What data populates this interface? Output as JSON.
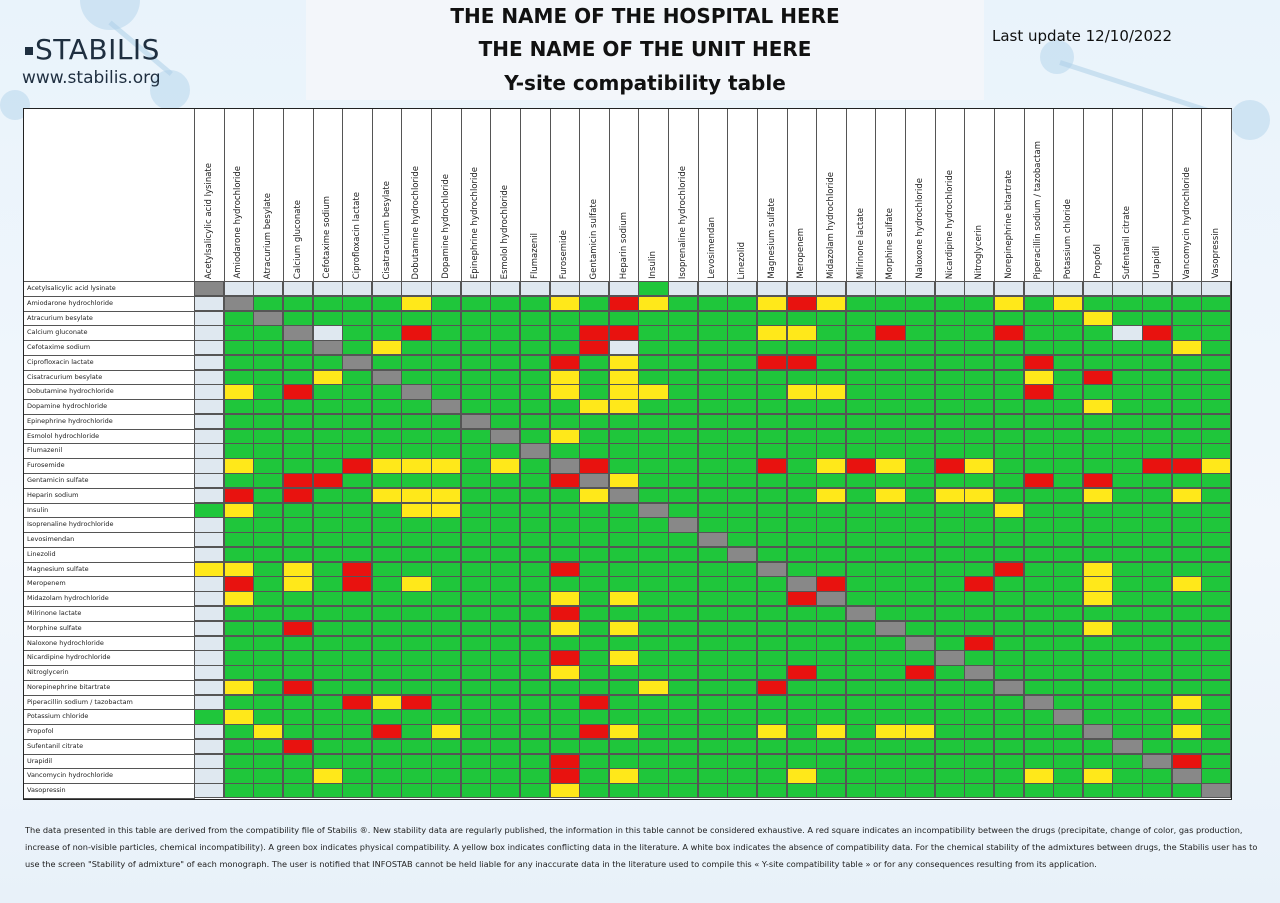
{
  "header": {
    "hospital": "THE NAME OF THE HOSPITAL HERE",
    "unit": "THE NAME OF THE UNIT HERE",
    "table_title": "Y-site compatibility table"
  },
  "logo": {
    "text": "STABILIS",
    "website": "www.stabilis.org"
  },
  "last_update": "Last update 12/10/2022",
  "colors": {
    "incompatible": "#e8120f",
    "compatible": "#1fc63b",
    "conflicting": "#ffe81a",
    "no_data": "#dfe8f0",
    "diagonal": "#888888"
  },
  "drugs": [
    "Acetylsalicylic acid lysinate",
    "Amiodarone hydrochloride",
    "Atracurium besylate",
    "Calcium gluconate",
    "Cefotaxime sodium",
    "Ciprofloxacin lactate",
    "Cisatracurium besylate",
    "Dobutamine hydrochloride",
    "Dopamine hydrochloride",
    "Epinephrine hydrochloride",
    "Esmolol hydrochloride",
    "Flumazenil",
    "Furosemide",
    "Gentamicin sulfate",
    "Heparin sodium",
    "Insulin",
    "Isoprenaline hydrochloride",
    "Levosimendan",
    "Linezolid",
    "Magnesium sulfate",
    "Meropenem",
    "Midazolam hydrochloride",
    "Milrinone lactate",
    "Morphine sulfate",
    "Naloxone hydrochloride",
    "Nicardipine hydrochloride",
    "Nitroglycerin",
    "Norepinephrine bitartrate",
    "Piperacillin sodium / tazobactam",
    "Potassium chloride",
    "Propofol",
    "Sufentanil citrate",
    "Urapidil",
    "Vancomycin hydrochloride",
    "Vasopressin"
  ],
  "matrix_legend": "D = diagonal (same drug), R = incompatible, G = compatible, Y = conflicting data, W = no data",
  "matrix": [
    "DWWWWWWWWWWWWWWGWWWWWWWWWWWWWWWWWWW",
    "WDGGGGGYGGGGYGRYGGGYRYGGGGGYGYGGGGG",
    "WGDGGGGGGGGGGGGGGGGGGGGGGGGGGGYGGGG",
    "WGGDWGGRGGGGGRRGGGGYYGGRGGGRGGGWRGG",
    "WGGGDGYGGGGGGRWGGGGGGGGGGGGGGGGGGYG",
    "WGGGGDGGGGGGRGYGGGGRRGGGGGGGRGGGGGG",
    "WGGGYGDGGGGGYGYGGGGGGGGGGGGGYGRGGGG",
    "WYGRGGGDGGGGYGYYGGGGYYGGGGGGRGGGGGG",
    "WGGGGGGGDGGGGYYGGGGGGGGGGGGGGGYGGGG",
    "WGGGGGGGGDGGGGGGGGGGGGGGGGGGGGGGGGG",
    "WGGGGGGGGGDGYGGGGGGGGGGGGGGGGGGGGGG",
    "WGGGGGGGGGGDGGGGGGGGGGGGGGGGGGGGGGG",
    "WYGGGRYYYGYGDRGGGGGRGYRYGRYGGGGGRRY",
    "WGGRRGGGGGGGRDYGGGGGGGGGGGGGRGRGGGG",
    "WRGRGGYYYGGGGYDGGGGGGYGYGYYGGGYGGYG",
    "GYGGGGGYYGGGGGGDGGGGGGGGGGGYGGGGGGG",
    "WGGGGGGGGGGGGGGGDGGGGGGGGGGGGGGGGGG",
    "WGGGGGGGGGGGGGGGGDGGGGGGGGGGGGGGGGG",
    "WGGGGGGGGGGGGGGGGGDGGGGGGGGGGGGGGGG",
    "YYGYGRGGGGGGRGGGGGGDGGGGGGGRGGYGGGG",
    "WRGYGRGYGGGGGGGGGGGGDRGGGGRGGGYGGYG",
    "WYGGGGGGGGGGYGYGGGGGRDGGGGGGGGYGGGG",
    "WGGGGGGGGGGGRGGGGGGGGGDGGGGGGGGGGGG",
    "WGGRGGGGGGGGYGYGGGGGGGGDGGGGGGYGGGG",
    "WGGGGGGGGGGGGGGGGGGGGGGGDGRGGGGGGGG",
    "WGGGGGGGGGGGRGYGGGGGGGGGGDGGGGGGGGG",
    "WGGGGGGGGGGGYGGGGGGGRGGGRGDGGGGGGGG",
    "WYGRGGGGGGGGGGGYGGGRGGGGGGGDGGGGGGG",
    "WGGGGRYRGGGGGRGGGGGGGGGGGGGGDGGGGYG",
    "GYGGGGGGGGGGGGGGGGGGGGGGGGGGGDGGGGG",
    "WGYGGGRGYGGGGRYGGGGYGYGYYGGGGGDGGYG",
    "WGGRGGGGGGGGGGGGGGGGGGGGGGGGGGGDGGG",
    "WGGGGGGGGGGGRGGGGGGGGGGGGGGGGGGGDRG",
    "WGGGYGGGGGGGRGYGGGGGYGGGGGGGYGYGGDG",
    "WGGGGGGGGGGGYGGGGGGGGGGGGGGGGGGGGGD"
  ],
  "footnote": "The data presented in this table are derived from the compatibility file of Stabilis ®. New stability data are regularly published, the information in this table cannot be considered exhaustive. A red square indicates an incompatibility between the drugs (precipitate, change of color, gas production, increase of non-visible particles, chemical incompatibility). A green box indicates physical compatibility. A yellow box indicates conflicting data in the literature. A white box indicates the absence of compatibility data. For the chemical stability of the admixtures between drugs, the Stabilis user has to use the screen \"Stability of admixture\" of each monograph. The user is notified that INFOSTAB cannot be held liable for any inaccurate data in the literature used to compile this « Y-site compatibility table » or for any consequences resulting from its application."
}
